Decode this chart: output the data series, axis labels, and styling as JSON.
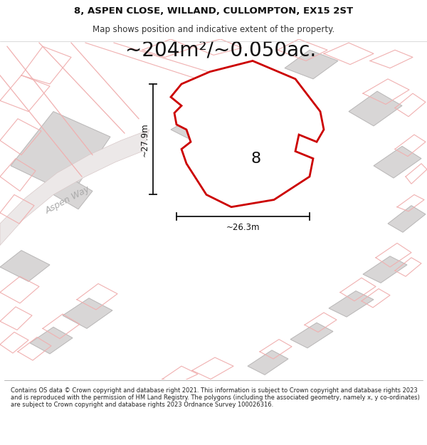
{
  "title_line1": "8, ASPEN CLOSE, WILLAND, CULLOMPTON, EX15 2ST",
  "title_line2": "Map shows position and indicative extent of the property.",
  "area_text": "~204m²/~0.050ac.",
  "dim_height": "~27.9m",
  "dim_width": "~26.3m",
  "plot_label": "8",
  "road_label": "Aspen Way",
  "footer_text": "Contains OS data © Crown copyright and database right 2021. This information is subject to Crown copyright and database rights 2023 and is reproduced with the permission of HM Land Registry. The polygons (including the associated geometry, namely x, y co-ordinates) are subject to Crown copyright and database rights 2023 Ordnance Survey 100026316.",
  "map_bg": "#f7f5f5",
  "plot_fill": "#ffffff",
  "plot_edge": "#cc0000",
  "building_fill": "#d8d6d6",
  "building_edge": "#b8b6b6",
  "pink_outline": "#f0b0b0",
  "dim_color": "#111111",
  "road_label_color": "#aaaaaa",
  "title_fontsize": 9.5,
  "subtitle_fontsize": 8.5,
  "area_fontsize": 20,
  "dim_fontsize": 8.5,
  "plot_label_fontsize": 16,
  "road_fontsize": 9
}
